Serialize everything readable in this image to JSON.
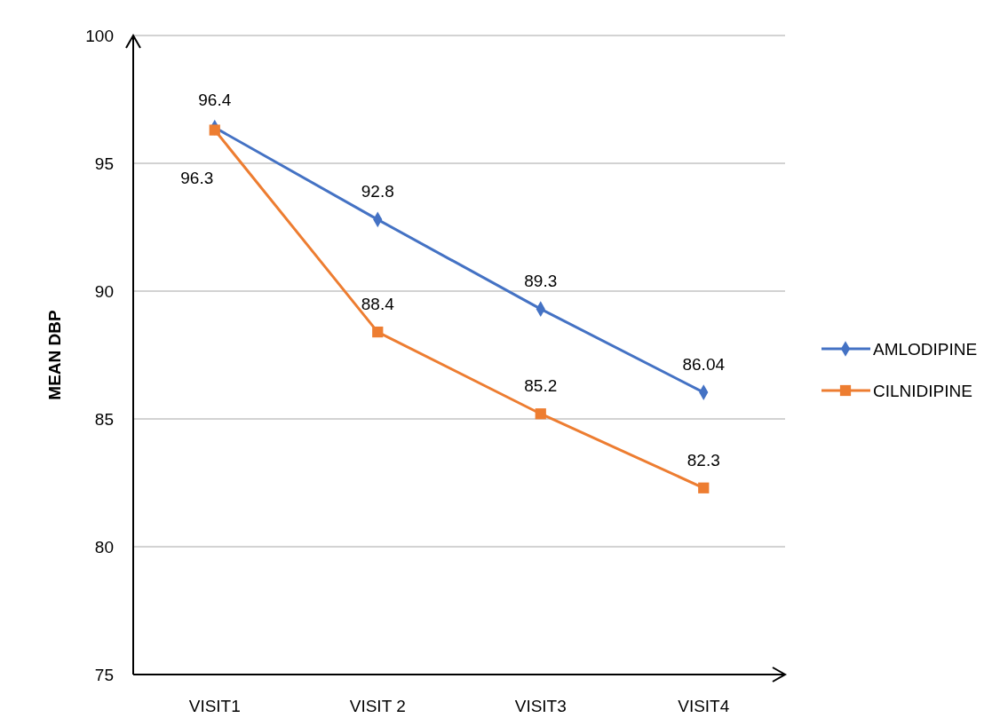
{
  "chart_data": {
    "type": "line",
    "ylabel": "MEAN DBP",
    "categories": [
      "VISIT1",
      "VISIT 2",
      "VISIT3",
      "VISIT4"
    ],
    "series": [
      {
        "name": "AMLODIPINE",
        "color": "#4472c4",
        "marker": "diamond",
        "values": [
          96.4,
          92.8,
          89.3,
          86.04
        ]
      },
      {
        "name": "CILNIDIPINE",
        "color": "#ed7d31",
        "marker": "square",
        "values": [
          96.3,
          88.4,
          85.2,
          82.3
        ]
      }
    ],
    "ylim": [
      75,
      100
    ],
    "yticks": [
      75,
      80,
      85,
      90,
      95,
      100
    ],
    "grid": "y",
    "legend": "right",
    "data_labels": true,
    "line_style": "solid"
  }
}
